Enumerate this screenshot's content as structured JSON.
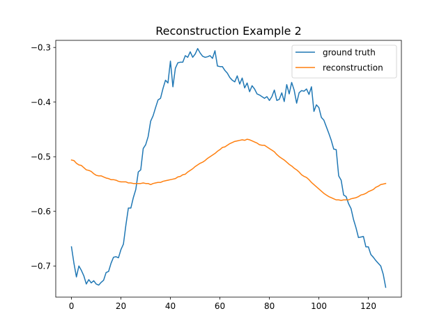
{
  "chart_data": {
    "type": "line",
    "title": "Reconstruction Example 2",
    "xlabel": "",
    "ylabel": "",
    "xlim": [
      -6.35,
      133.35
    ],
    "ylim": [
      -0.757,
      -0.287
    ],
    "xticks": [
      0,
      20,
      40,
      60,
      80,
      100,
      120
    ],
    "yticks": [
      -0.7,
      -0.6,
      -0.5,
      -0.4,
      -0.3
    ],
    "ytick_labels": [
      "−0.7",
      "−0.6",
      "−0.5",
      "−0.4",
      "−0.3"
    ],
    "grid": false,
    "legend": "top-right",
    "series": [
      {
        "name": "ground truth",
        "color": "#1f77b4",
        "x": [
          0,
          1,
          2,
          3,
          4,
          5,
          6,
          7,
          8,
          9,
          10,
          11,
          12,
          13,
          14,
          15,
          16,
          17,
          18,
          19,
          20,
          21,
          22,
          23,
          24,
          25,
          26,
          27,
          28,
          29,
          30,
          31,
          32,
          33,
          34,
          35,
          36,
          37,
          38,
          39,
          40,
          41,
          42,
          43,
          44,
          45,
          46,
          47,
          48,
          49,
          50,
          51,
          52,
          53,
          54,
          55,
          56,
          57,
          58,
          59,
          60,
          61,
          62,
          63,
          64,
          65,
          66,
          67,
          68,
          69,
          70,
          71,
          72,
          73,
          74,
          75,
          76,
          77,
          78,
          79,
          80,
          81,
          82,
          83,
          84,
          85,
          86,
          87,
          88,
          89,
          90,
          91,
          92,
          93,
          94,
          95,
          96,
          97,
          98,
          99,
          100,
          101,
          102,
          103,
          104,
          105,
          106,
          107,
          108,
          109,
          110,
          111,
          112,
          113,
          114,
          115,
          116,
          117,
          118,
          119,
          120,
          121,
          122,
          123,
          124,
          125,
          126,
          127
        ],
        "values": [
          -0.665,
          -0.695,
          -0.72,
          -0.7,
          -0.708,
          -0.718,
          -0.733,
          -0.725,
          -0.731,
          -0.727,
          -0.733,
          -0.735,
          -0.73,
          -0.726,
          -0.712,
          -0.71,
          -0.695,
          -0.684,
          -0.683,
          -0.685,
          -0.67,
          -0.66,
          -0.625,
          -0.594,
          -0.594,
          -0.575,
          -0.56,
          -0.528,
          -0.524,
          -0.485,
          -0.478,
          -0.463,
          -0.435,
          -0.425,
          -0.41,
          -0.396,
          -0.393,
          -0.375,
          -0.36,
          -0.365,
          -0.325,
          -0.372,
          -0.338,
          -0.328,
          -0.327,
          -0.327,
          -0.315,
          -0.318,
          -0.308,
          -0.318,
          -0.312,
          -0.302,
          -0.31,
          -0.316,
          -0.318,
          -0.317,
          -0.315,
          -0.32,
          -0.306,
          -0.334,
          -0.335,
          -0.335,
          -0.342,
          -0.347,
          -0.355,
          -0.36,
          -0.363,
          -0.352,
          -0.367,
          -0.356,
          -0.374,
          -0.365,
          -0.381,
          -0.37,
          -0.376,
          -0.385,
          -0.387,
          -0.39,
          -0.393,
          -0.39,
          -0.397,
          -0.39,
          -0.378,
          -0.397,
          -0.395,
          -0.383,
          -0.399,
          -0.368,
          -0.385,
          -0.364,
          -0.378,
          -0.402,
          -0.383,
          -0.379,
          -0.38,
          -0.376,
          -0.386,
          -0.372,
          -0.417,
          -0.405,
          -0.41,
          -0.428,
          -0.433,
          -0.445,
          -0.457,
          -0.47,
          -0.486,
          -0.487,
          -0.535,
          -0.543,
          -0.57,
          -0.573,
          -0.586,
          -0.595,
          -0.615,
          -0.63,
          -0.648,
          -0.647,
          -0.646,
          -0.665,
          -0.665,
          -0.679,
          -0.684,
          -0.69,
          -0.695,
          -0.7,
          -0.715,
          -0.739
        ]
      },
      {
        "name": "reconstruction",
        "color": "#ff7f0e",
        "x": [
          0,
          1,
          2,
          3,
          4,
          5,
          6,
          7,
          8,
          9,
          10,
          11,
          12,
          13,
          14,
          15,
          16,
          17,
          18,
          19,
          20,
          21,
          22,
          23,
          24,
          25,
          26,
          27,
          28,
          29,
          30,
          31,
          32,
          33,
          34,
          35,
          36,
          37,
          38,
          39,
          40,
          41,
          42,
          43,
          44,
          45,
          46,
          47,
          48,
          49,
          50,
          51,
          52,
          53,
          54,
          55,
          56,
          57,
          58,
          59,
          60,
          61,
          62,
          63,
          64,
          65,
          66,
          67,
          68,
          69,
          70,
          71,
          72,
          73,
          74,
          75,
          76,
          77,
          78,
          79,
          80,
          81,
          82,
          83,
          84,
          85,
          86,
          87,
          88,
          89,
          90,
          91,
          92,
          93,
          94,
          95,
          96,
          97,
          98,
          99,
          100,
          101,
          102,
          103,
          104,
          105,
          106,
          107,
          108,
          109,
          110,
          111,
          112,
          113,
          114,
          115,
          116,
          117,
          118,
          119,
          120,
          121,
          122,
          123,
          124,
          125,
          126,
          127
        ],
        "values": [
          -0.506,
          -0.507,
          -0.512,
          -0.515,
          -0.516,
          -0.52,
          -0.524,
          -0.525,
          -0.527,
          -0.531,
          -0.534,
          -0.535,
          -0.535,
          -0.537,
          -0.539,
          -0.54,
          -0.542,
          -0.542,
          -0.543,
          -0.545,
          -0.546,
          -0.546,
          -0.546,
          -0.548,
          -0.548,
          -0.549,
          -0.549,
          -0.549,
          -0.549,
          -0.548,
          -0.549,
          -0.549,
          -0.551,
          -0.549,
          -0.548,
          -0.547,
          -0.547,
          -0.545,
          -0.544,
          -0.543,
          -0.542,
          -0.541,
          -0.54,
          -0.537,
          -0.536,
          -0.533,
          -0.532,
          -0.528,
          -0.525,
          -0.522,
          -0.518,
          -0.515,
          -0.512,
          -0.51,
          -0.507,
          -0.503,
          -0.5,
          -0.497,
          -0.494,
          -0.49,
          -0.487,
          -0.483,
          -0.482,
          -0.479,
          -0.476,
          -0.474,
          -0.472,
          -0.471,
          -0.47,
          -0.469,
          -0.47,
          -0.468,
          -0.469,
          -0.471,
          -0.473,
          -0.475,
          -0.478,
          -0.479,
          -0.479,
          -0.482,
          -0.485,
          -0.488,
          -0.491,
          -0.496,
          -0.5,
          -0.503,
          -0.506,
          -0.51,
          -0.514,
          -0.517,
          -0.521,
          -0.524,
          -0.528,
          -0.533,
          -0.536,
          -0.538,
          -0.542,
          -0.547,
          -0.551,
          -0.555,
          -0.559,
          -0.563,
          -0.567,
          -0.57,
          -0.573,
          -0.575,
          -0.577,
          -0.579,
          -0.579,
          -0.58,
          -0.579,
          -0.579,
          -0.579,
          -0.577,
          -0.576,
          -0.575,
          -0.573,
          -0.57,
          -0.569,
          -0.567,
          -0.564,
          -0.562,
          -0.56,
          -0.556,
          -0.554,
          -0.551,
          -0.55,
          -0.549
        ]
      }
    ]
  }
}
